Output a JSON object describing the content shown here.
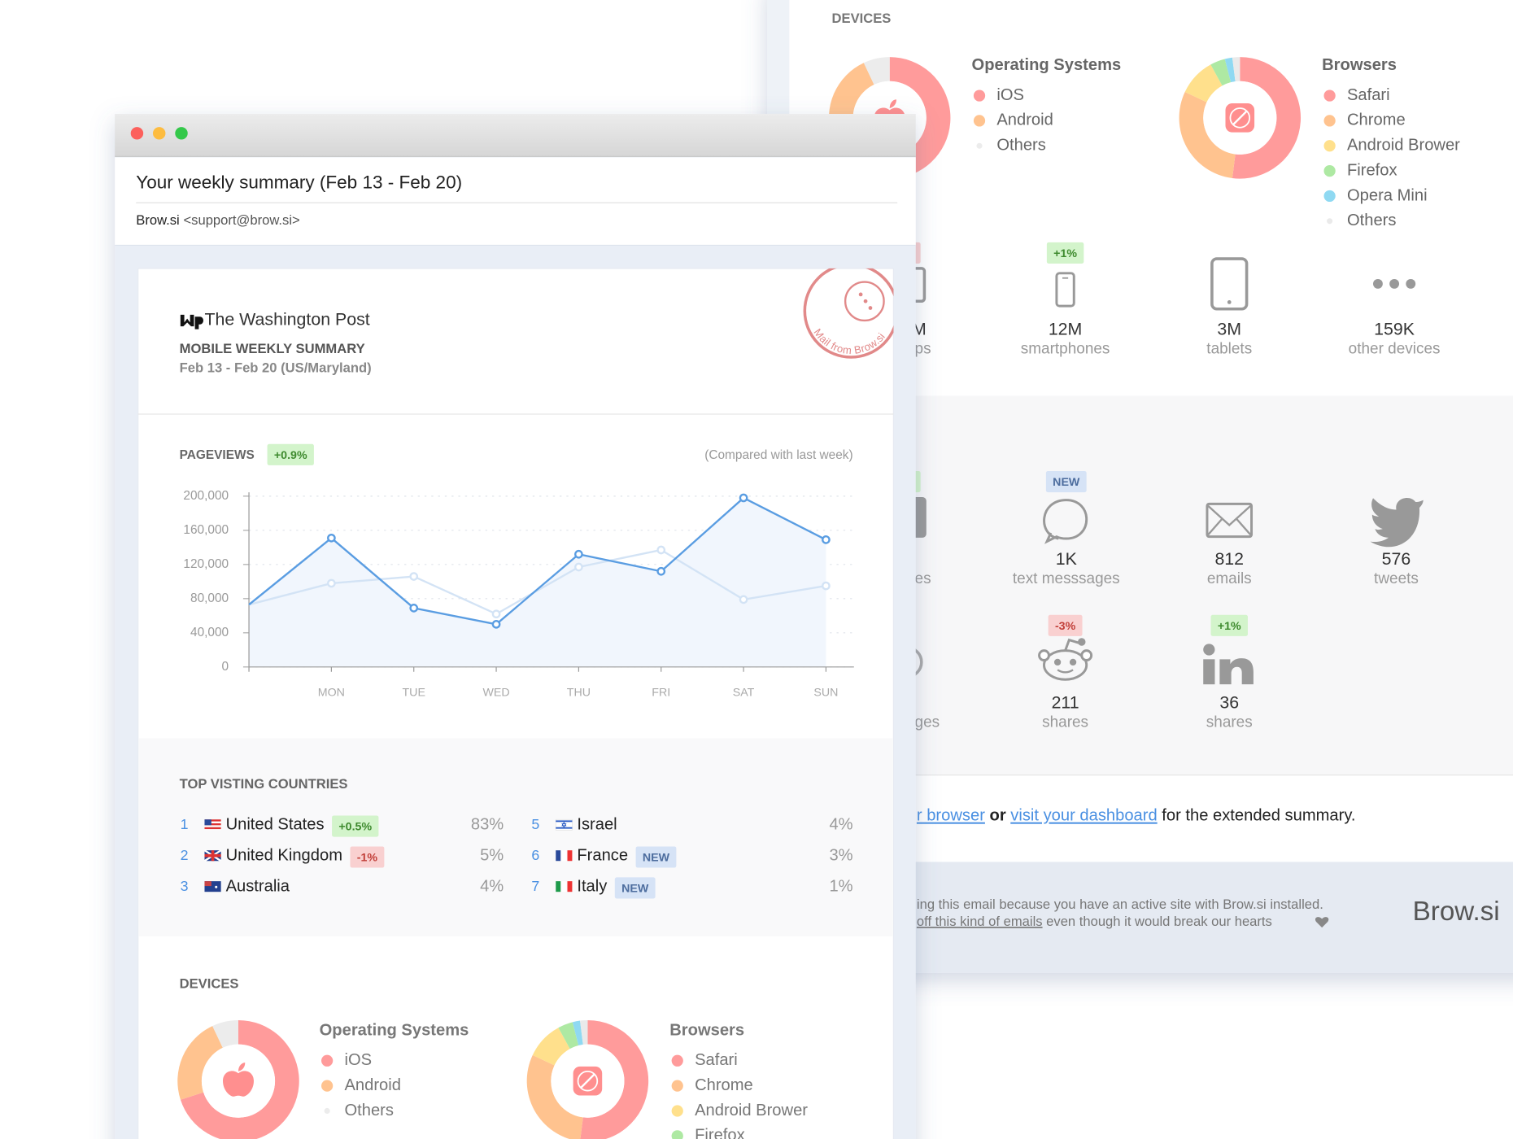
{
  "window": {
    "subject": "Your weekly summary (Feb 13 - Feb 20)",
    "sender_name": "Brow.si",
    "sender_email": "<support@brow.si>"
  },
  "header": {
    "publisher": "The Washington Post",
    "title": "MOBILE WEEKLY SUMMARY",
    "subtitle": "Feb 13 - Feb 20 (US/Maryland)",
    "stamp": "Mail from Brow.si"
  },
  "chart_data": [
    {
      "type": "line",
      "title": "PAGEVIEWS",
      "badge": "+0.9%",
      "note": "(Compared with last week)",
      "categories": [
        null,
        "MON",
        "TUE",
        "WED",
        "THU",
        "FRI",
        "SAT",
        "SUN"
      ],
      "series": [
        {
          "color": "#5a9de2",
          "values": [
            73000,
            151000,
            69000,
            50000,
            132000,
            112000,
            198000,
            149000
          ]
        },
        {
          "color": "#d3e3f5",
          "values": [
            73000,
            98000,
            106000,
            62000,
            117000,
            137000,
            79000,
            95000
          ]
        }
      ],
      "ylim": [
        0,
        200000
      ],
      "yticks": [
        0,
        {
          "value": 40000,
          "label": "40,000"
        },
        {
          "value": 80000,
          "label": "80,000"
        },
        {
          "value": 120000,
          "label": "120,000"
        },
        {
          "value": 160000,
          "label": "160,000"
        },
        {
          "value": 200000,
          "label": "200,000"
        }
      ],
      "grid": true,
      "area_color": "#f1f6fd"
    },
    {
      "type": "pie",
      "title": "Operating Systems",
      "categories": [
        "iOS",
        "Android",
        "Others"
      ],
      "values": [
        70,
        23,
        7
      ],
      "colors": [
        "#ff9b9b",
        "#ffc38f",
        "#ececec"
      ]
    },
    {
      "type": "pie",
      "title": "Browsers",
      "categories": [
        "Safari",
        "Chrome",
        "Android Brower",
        "Firefox",
        "Opera Mini",
        "Others"
      ],
      "values": [
        52,
        30,
        10,
        4,
        2,
        2
      ],
      "colors": [
        "#ff9b9b",
        "#ffc38f",
        "#ffe08c",
        "#aee9a3",
        "#8fd9f2",
        "#eaeaea"
      ]
    }
  ],
  "countries": {
    "title": "TOP VISTING COUNTRIES",
    "rows": [
      {
        "rank": 1,
        "name": "United States",
        "badge": "+0.5%",
        "share": "83%"
      },
      {
        "rank": 2,
        "name": "United Kingdom",
        "badge": "-1%",
        "share": "5%"
      },
      {
        "rank": 3,
        "name": "Australia",
        "share": "4%"
      },
      {
        "rank": 5,
        "name": "Israel",
        "share": "4%"
      },
      {
        "rank": 6,
        "name": "France",
        "badge": "NEW",
        "share": "3%"
      },
      {
        "rank": 7,
        "name": "Italy",
        "badge": "NEW",
        "share": "1%"
      }
    ]
  },
  "devices_title": "DEVICES",
  "back": {
    "devices": [
      {
        "badge": "+1%",
        "value": "12M",
        "label": "smartphones"
      },
      {
        "value": "3M",
        "label": "tablets"
      },
      {
        "value": "159K",
        "label": "other devices"
      }
    ],
    "social": [
      {
        "badge": "NEW",
        "value": "1K",
        "label": "text messsages"
      },
      {
        "value": "812",
        "label": "emails"
      },
      {
        "value": "576",
        "label": "tweets"
      },
      {
        "badge": "-3%",
        "value": "211",
        "label": "shares"
      },
      {
        "badge": "+1%",
        "value": "36",
        "label": "shares"
      }
    ],
    "fragments": [
      "M",
      "ps",
      "es",
      "ges"
    ],
    "cta": {
      "link1": "r browser",
      "mid": " or ",
      "link2": "visit your dashboard",
      "end": " for the extended summary."
    },
    "footer": {
      "line1": "ing this email because you have an active site with Brow.si installed.",
      "link": "off this kind of emails",
      "line2": " even though it would break our hearts",
      "logo": "Brow.si"
    }
  }
}
